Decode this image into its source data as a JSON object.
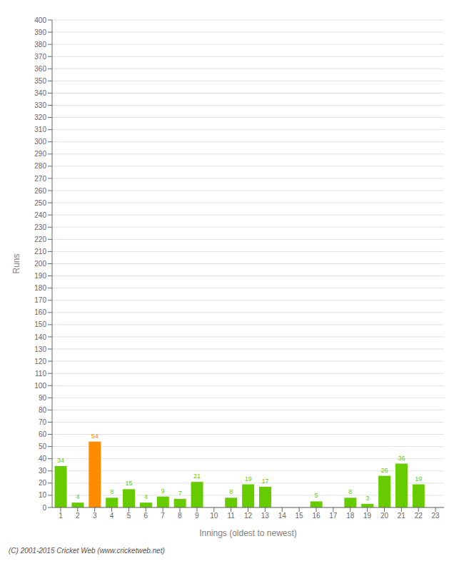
{
  "chart_data": {
    "type": "bar",
    "xlabel": "Innings (oldest to newest)",
    "ylabel": "Runs",
    "categories": [
      "1",
      "2",
      "3",
      "4",
      "5",
      "6",
      "7",
      "8",
      "9",
      "10",
      "11",
      "12",
      "13",
      "14",
      "15",
      "16",
      "17",
      "18",
      "19",
      "20",
      "21",
      "22",
      "23"
    ],
    "values": [
      34,
      4,
      54,
      8,
      15,
      4,
      9,
      7,
      21,
      0,
      8,
      19,
      17,
      0,
      0,
      5,
      0,
      8,
      3,
      26,
      36,
      19,
      0
    ],
    "colors": [
      "#66cc00",
      "#66cc00",
      "#ff8c00",
      "#66cc00",
      "#66cc00",
      "#66cc00",
      "#66cc00",
      "#66cc00",
      "#66cc00",
      "#66cc00",
      "#66cc00",
      "#66cc00",
      "#66cc00",
      "#66cc00",
      "#66cc00",
      "#66cc00",
      "#66cc00",
      "#66cc00",
      "#66cc00",
      "#66cc00",
      "#66cc00",
      "#66cc00",
      "#66cc00"
    ],
    "ylim": [
      0,
      400
    ],
    "yticks": [
      0,
      10,
      20,
      30,
      40,
      50,
      60,
      70,
      80,
      90,
      100,
      110,
      120,
      130,
      140,
      150,
      160,
      170,
      180,
      190,
      200,
      210,
      220,
      230,
      240,
      250,
      260,
      270,
      280,
      290,
      300,
      310,
      320,
      330,
      340,
      350,
      360,
      370,
      380,
      390,
      400
    ],
    "grid": true,
    "data_labels": true,
    "annotations": [
      "(C) 2001-2015 Cricket Web (www.cricketweb.net)"
    ]
  }
}
